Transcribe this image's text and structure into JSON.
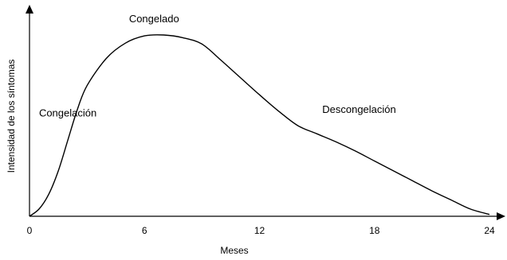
{
  "chart_data": {
    "type": "line",
    "xlabel": "Meses",
    "ylabel": "Intensidad de los síntomas",
    "xlim": [
      0,
      24
    ],
    "ylim": [
      0,
      1
    ],
    "x_ticks": [
      0,
      6,
      12,
      18,
      24
    ],
    "grid": false,
    "series": [
      {
        "color": "#000000",
        "x": [
          0,
          0.5,
          1,
          1.5,
          2,
          2.5,
          3,
          4,
          5,
          6,
          7,
          8,
          9,
          10,
          11,
          12,
          13,
          14,
          15,
          16,
          17,
          18,
          19,
          20,
          21,
          22,
          23,
          24
        ],
        "y": [
          0,
          0.04,
          0.12,
          0.25,
          0.42,
          0.59,
          0.72,
          0.87,
          0.955,
          0.995,
          1.0,
          0.985,
          0.95,
          0.86,
          0.765,
          0.67,
          0.58,
          0.5,
          0.455,
          0.41,
          0.36,
          0.305,
          0.25,
          0.195,
          0.14,
          0.09,
          0.04,
          0.01
        ]
      }
    ],
    "annotations": [
      {
        "text": "Congelación",
        "x": 2.0,
        "y": 0.55
      },
      {
        "text": "Congelado",
        "x": 6.5,
        "y": 1.07
      },
      {
        "text": "Descongelación",
        "x": 17.2,
        "y": 0.57
      }
    ]
  }
}
